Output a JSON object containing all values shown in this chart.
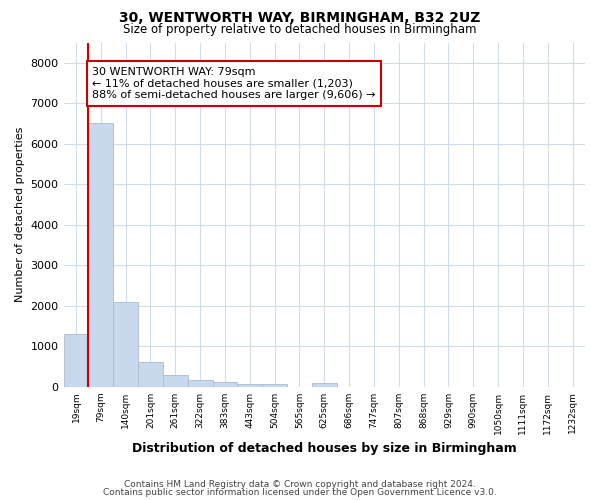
{
  "title_line1": "30, WENTWORTH WAY, BIRMINGHAM, B32 2UZ",
  "title_line2": "Size of property relative to detached houses in Birmingham",
  "xlabel": "Distribution of detached houses by size in Birmingham",
  "ylabel": "Number of detached properties",
  "categories": [
    "19sqm",
    "79sqm",
    "140sqm",
    "201sqm",
    "261sqm",
    "322sqm",
    "383sqm",
    "443sqm",
    "504sqm",
    "565sqm",
    "625sqm",
    "686sqm",
    "747sqm",
    "807sqm",
    "868sqm",
    "929sqm",
    "990sqm",
    "1050sqm",
    "1111sqm",
    "1172sqm",
    "1232sqm"
  ],
  "values": [
    1300,
    6500,
    2080,
    620,
    300,
    160,
    110,
    75,
    75,
    0,
    95,
    0,
    0,
    0,
    0,
    0,
    0,
    0,
    0,
    0,
    0
  ],
  "bar_color": "#c8d8ed",
  "bar_edge_color": "#aabbd0",
  "highlight_index": 1,
  "highlight_line_color": "#cc0000",
  "annotation_text": "30 WENTWORTH WAY: 79sqm\n← 11% of detached houses are smaller (1,203)\n88% of semi-detached houses are larger (9,606) →",
  "annotation_box_facecolor": "#ffffff",
  "annotation_box_edgecolor": "#cc0000",
  "ylim": [
    0,
    8500
  ],
  "yticks": [
    0,
    1000,
    2000,
    3000,
    4000,
    5000,
    6000,
    7000,
    8000
  ],
  "footer_line1": "Contains HM Land Registry data © Crown copyright and database right 2024.",
  "footer_line2": "Contains public sector information licensed under the Open Government Licence v3.0.",
  "background_color": "#ffffff",
  "grid_color": "#d0dce8"
}
